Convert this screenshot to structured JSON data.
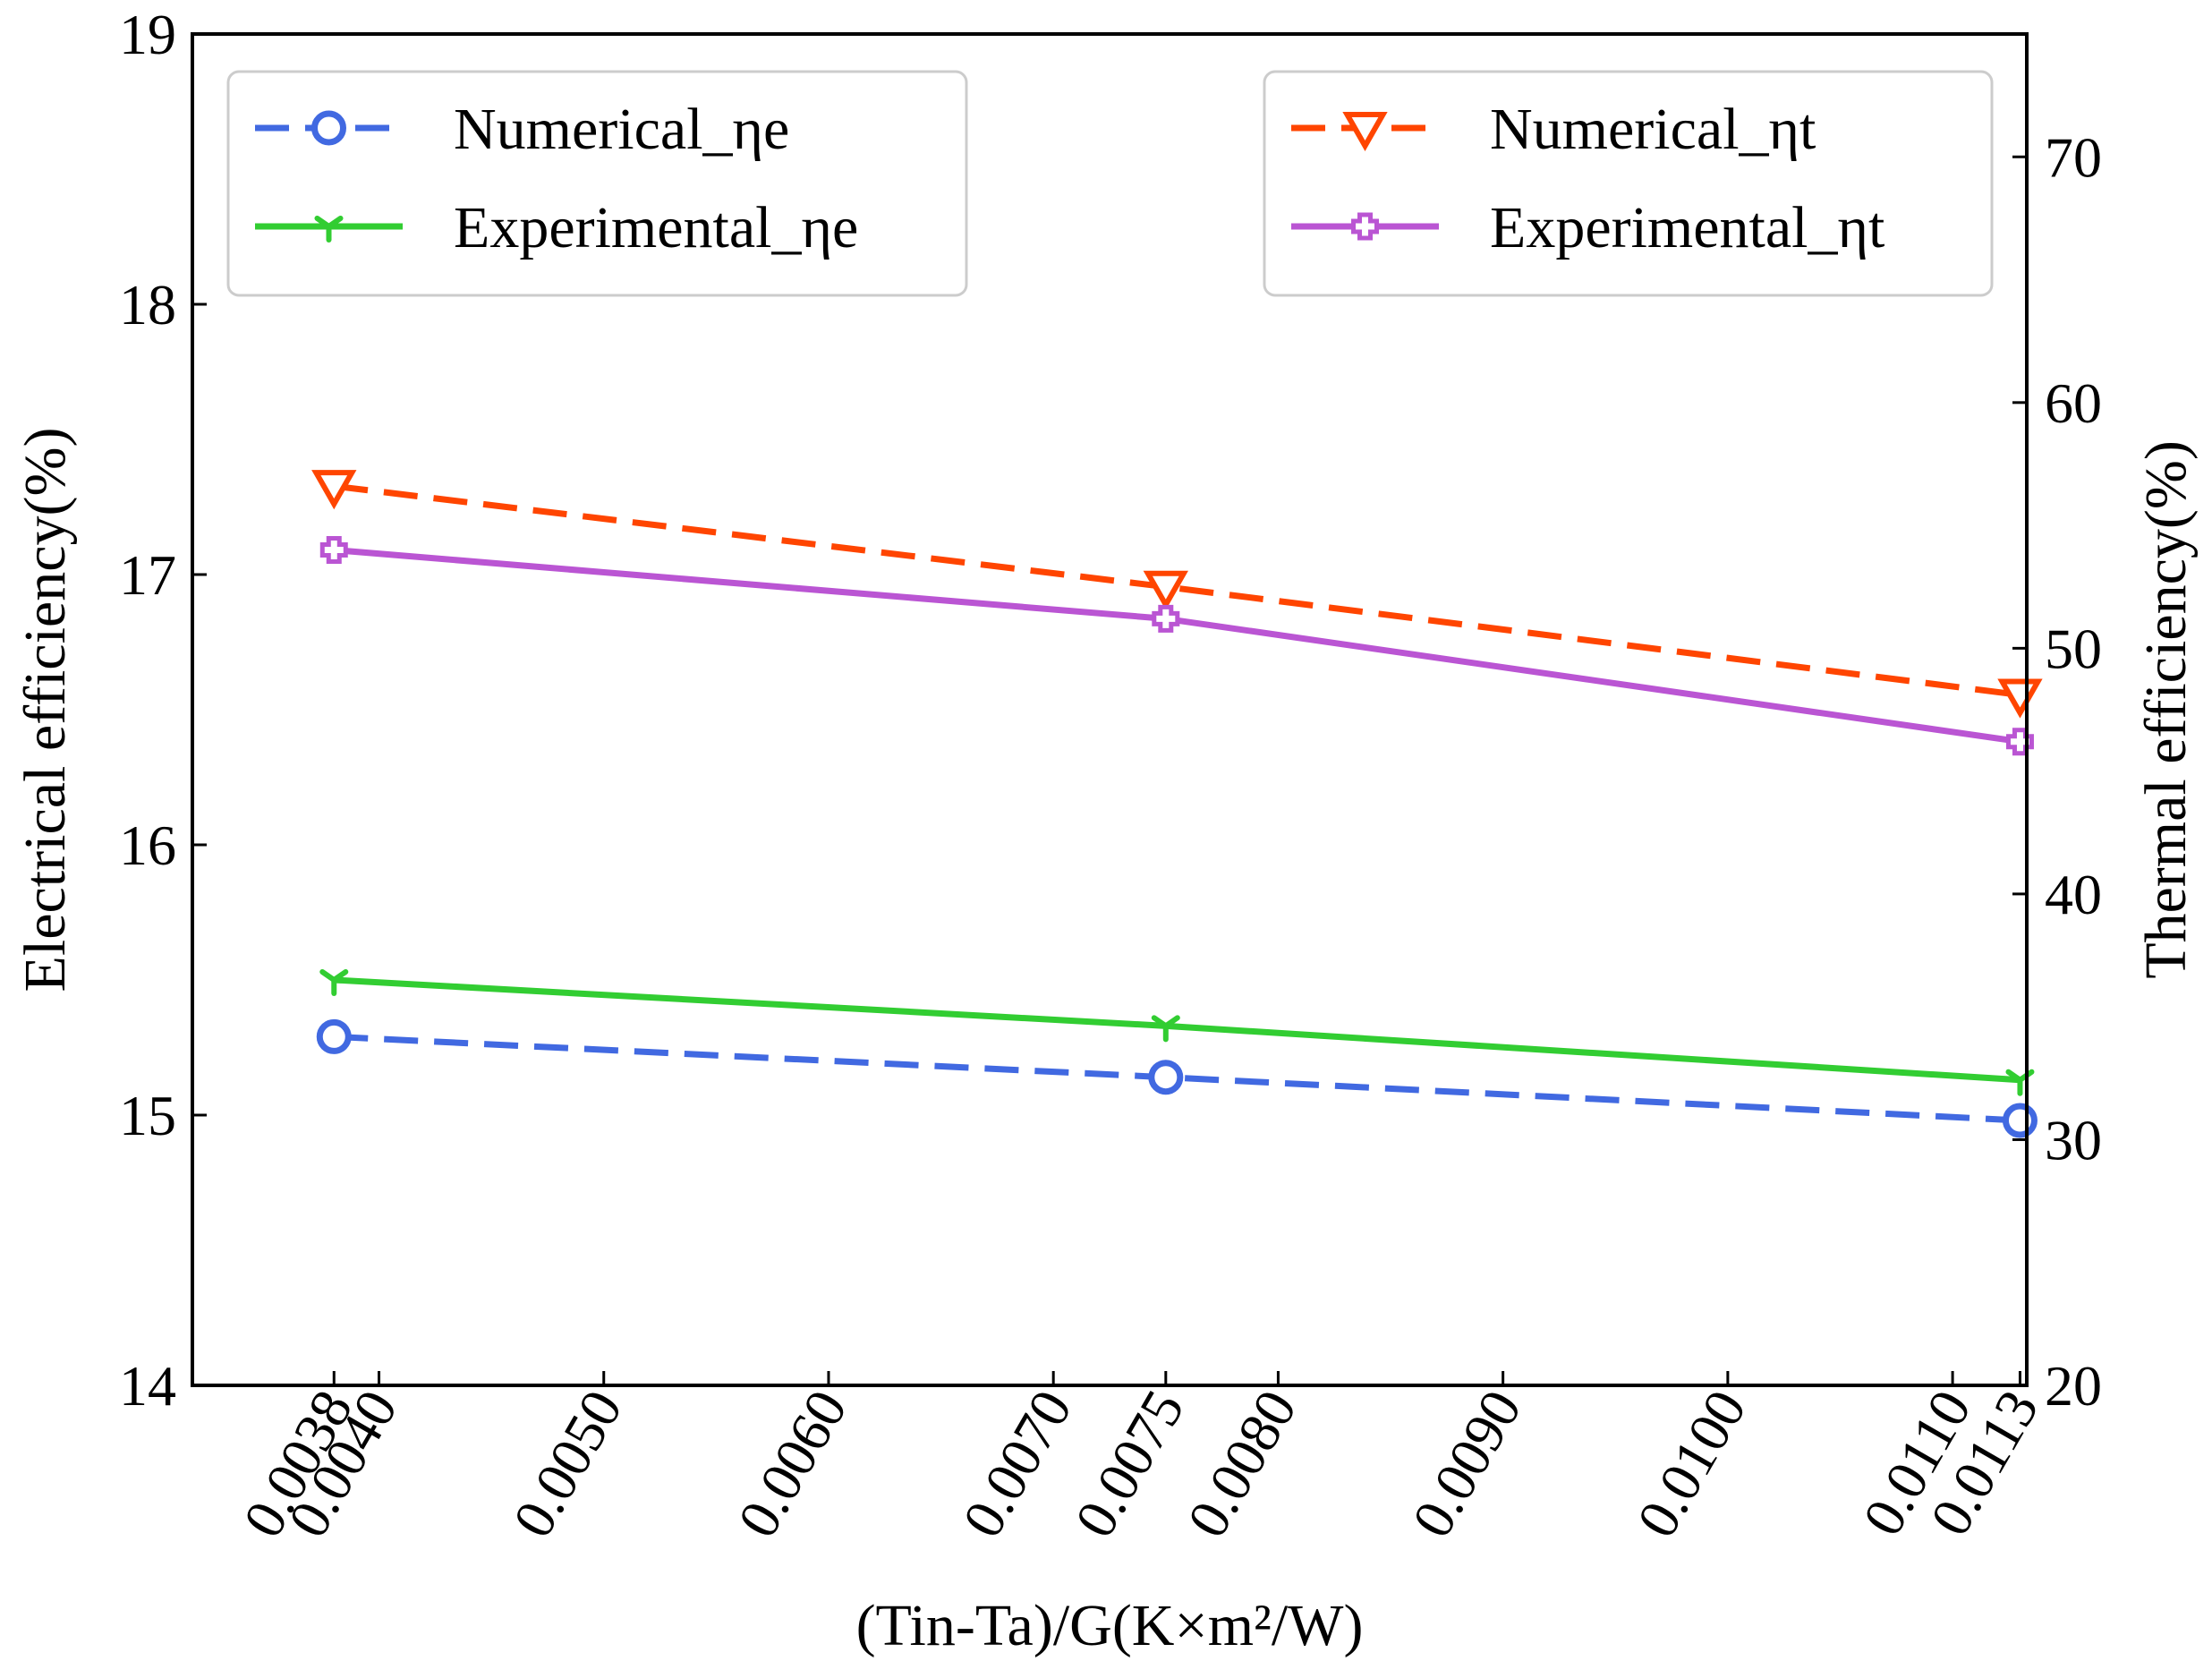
{
  "chart_data": {
    "type": "line",
    "x": [
      0.0038,
      0.0075,
      0.0113
    ],
    "xlabel": "(Tin-Ta)/G(K×m²/W)",
    "xlim": [
      0.00317,
      0.01133
    ],
    "xticks": [
      "0.0038",
      "0.0040",
      "0.0050",
      "0.0060",
      "0.0070",
      "0.0075",
      "0.0080",
      "0.0090",
      "0.0100",
      "0.0110",
      "0.0113"
    ],
    "ylabel_left": "Electrical efficiency(%)",
    "ylim_left": [
      14,
      19
    ],
    "yticks_left": [
      "14",
      "15",
      "16",
      "17",
      "18",
      "19"
    ],
    "ylabel_right": "Thermal efficiency(%)",
    "ylim_right": [
      20,
      75
    ],
    "yticks_right": [
      "20",
      "30",
      "40",
      "50",
      "60",
      "70"
    ],
    "series": [
      {
        "name": "Numerical_ηe",
        "axis": "left",
        "color": "#4169e1",
        "style": "dashed",
        "marker": "circle",
        "values": [
          15.29,
          15.14,
          14.98
        ]
      },
      {
        "name": "Experimental_ηe",
        "axis": "left",
        "color": "#32cd32",
        "style": "solid",
        "marker": "tri_down",
        "values": [
          15.5,
          15.33,
          15.13
        ]
      },
      {
        "name": "Numerical_ηt",
        "axis": "right",
        "color": "#ff4500",
        "style": "dashed",
        "marker": "triangle_down",
        "values": [
          56.6,
          52.5,
          48.1
        ]
      },
      {
        "name": "Experimental_ηt",
        "axis": "right",
        "color": "#ba55d3",
        "style": "solid",
        "marker": "cross",
        "values": [
          54.0,
          51.2,
          46.2
        ]
      }
    ],
    "legends": [
      {
        "position": "upper-left",
        "entries": [
          "Numerical_ηe",
          "Experimental_ηe"
        ]
      },
      {
        "position": "upper-right",
        "entries": [
          "Numerical_ηt",
          "Experimental_ηt"
        ]
      }
    ]
  }
}
